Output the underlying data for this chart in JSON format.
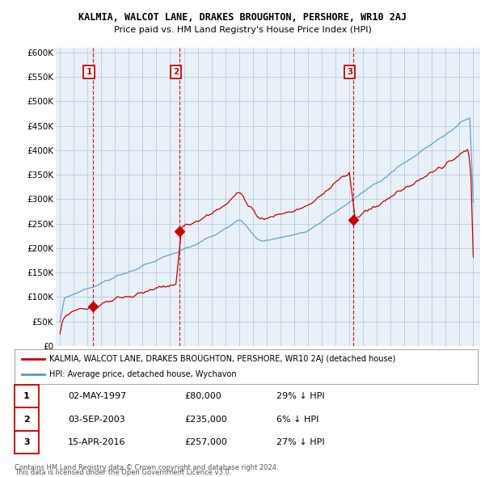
{
  "title": "KALMIA, WALCOT LANE, DRAKES BROUGHTON, PERSHORE, WR10 2AJ",
  "subtitle": "Price paid vs. HM Land Registry's House Price Index (HPI)",
  "yticks": [
    0,
    50000,
    100000,
    150000,
    200000,
    250000,
    300000,
    350000,
    400000,
    450000,
    500000,
    550000,
    600000
  ],
  "ylim": [
    0,
    610000
  ],
  "sale_year_floats": [
    1997.37,
    2003.67,
    2016.29
  ],
  "sale_prices": [
    80000,
    235000,
    257000
  ],
  "sale_labels": [
    "1",
    "2",
    "3"
  ],
  "sale_info": [
    {
      "label": "1",
      "date": "02-MAY-1997",
      "price": "£80,000",
      "hpi": "29% ↓ HPI"
    },
    {
      "label": "2",
      "date": "03-SEP-2003",
      "price": "£235,000",
      "hpi": "6% ↓ HPI"
    },
    {
      "label": "3",
      "date": "15-APR-2016",
      "price": "£257,000",
      "hpi": "27% ↓ HPI"
    }
  ],
  "legend_line1": "KALMIA, WALCOT LANE, DRAKES BROUGHTON, PERSHORE, WR10 2AJ (detached house)",
  "legend_line2": "HPI: Average price, detached house, Wychavon",
  "footer1": "Contains HM Land Registry data © Crown copyright and database right 2024.",
  "footer2": "This data is licensed under the Open Government Licence v3.0.",
  "red_color": "#cc0000",
  "blue_color": "#5599cc",
  "vline_color": "#cc0000",
  "grid_color": "#bbccdd",
  "chart_bg": "#e8f0f8",
  "background_color": "#ffffff",
  "xlim_start": 1994.7,
  "xlim_end": 2025.5
}
